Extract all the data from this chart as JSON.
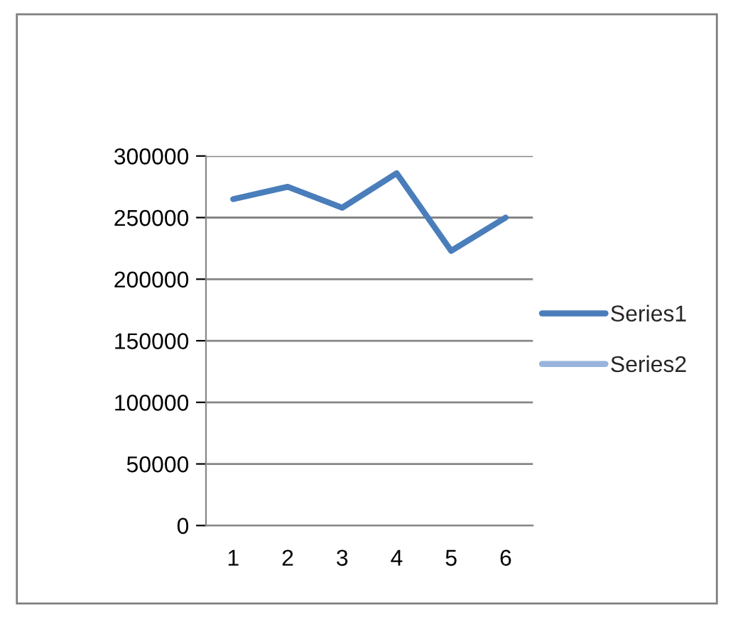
{
  "chart_data": {
    "type": "line",
    "categories": [
      "1",
      "2",
      "3",
      "4",
      "5",
      "6"
    ],
    "series": [
      {
        "name": "Series1",
        "color": "#4a7ebb",
        "values": [
          265000,
          275000,
          258000,
          286000,
          223000,
          250000
        ]
      },
      {
        "name": "Series2",
        "color": "#98b4dc",
        "values": [
          null,
          null,
          null,
          null,
          null,
          null
        ]
      }
    ],
    "ylim": [
      0,
      300000
    ],
    "yticks": [
      0,
      50000,
      100000,
      150000,
      200000,
      250000,
      300000
    ],
    "grid": "y",
    "legend": "right",
    "marker": "none",
    "line_style": "solid"
  }
}
